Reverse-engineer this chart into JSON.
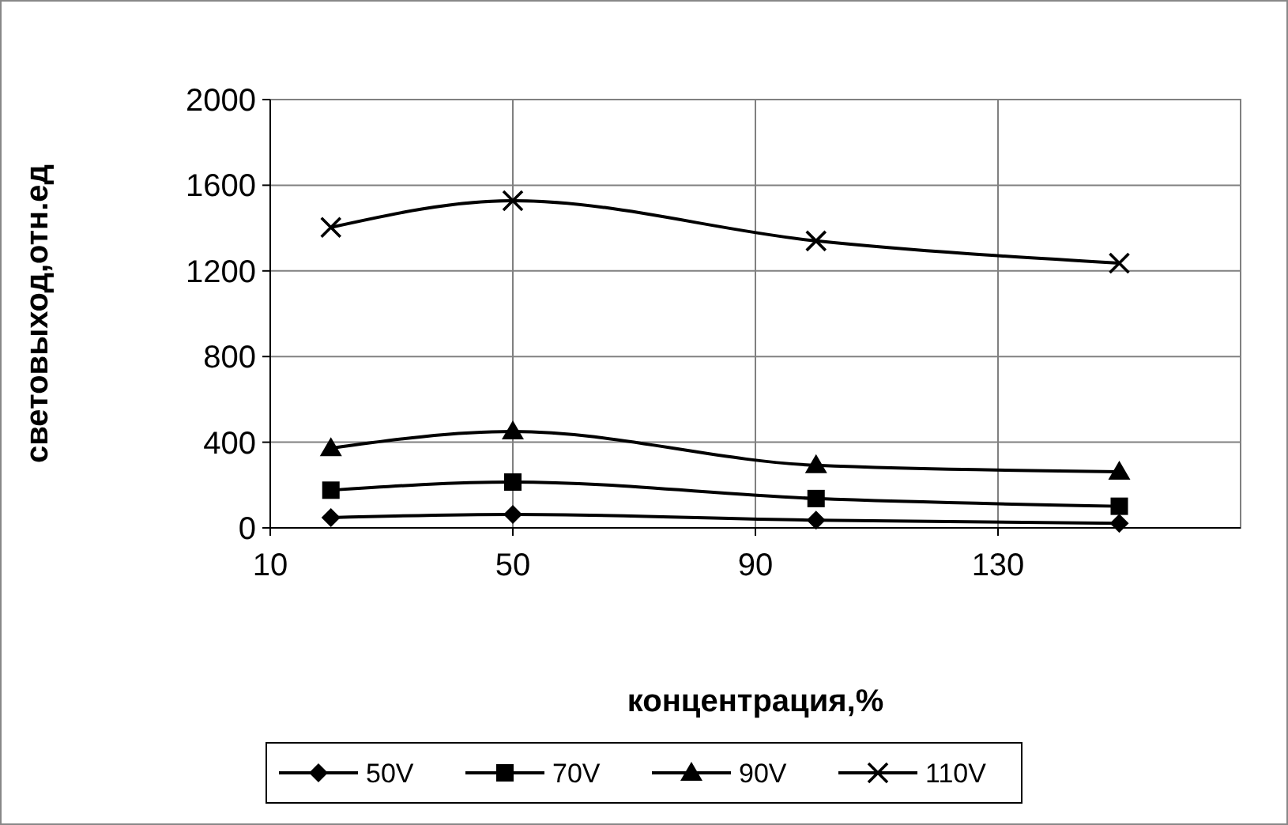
{
  "chart_data": {
    "type": "line",
    "xlabel": "концентрация,%",
    "ylabel": "световыход,отн.ед",
    "x": [
      20,
      50,
      100,
      150
    ],
    "series": [
      {
        "name": "50V",
        "color": "#000000",
        "marker": "diamond",
        "values": [
          48,
          63,
          36,
          21
        ]
      },
      {
        "name": "70V",
        "color": "#000000",
        "marker": "square",
        "values": [
          176,
          214,
          137,
          101
        ]
      },
      {
        "name": "90V",
        "color": "#000000",
        "marker": "triangle",
        "values": [
          372,
          450,
          292,
          262
        ]
      },
      {
        "name": "110V",
        "color": "#000000",
        "marker": "cross",
        "values": [
          1403,
          1528,
          1340,
          1236
        ]
      }
    ],
    "xlim": [
      10,
      170
    ],
    "xticks": [
      10,
      50,
      90,
      130
    ],
    "ylim": [
      0,
      2000
    ],
    "yticks": [
      0,
      400,
      800,
      1200,
      1600,
      2000
    ],
    "grid": true,
    "legend": "bottom"
  }
}
